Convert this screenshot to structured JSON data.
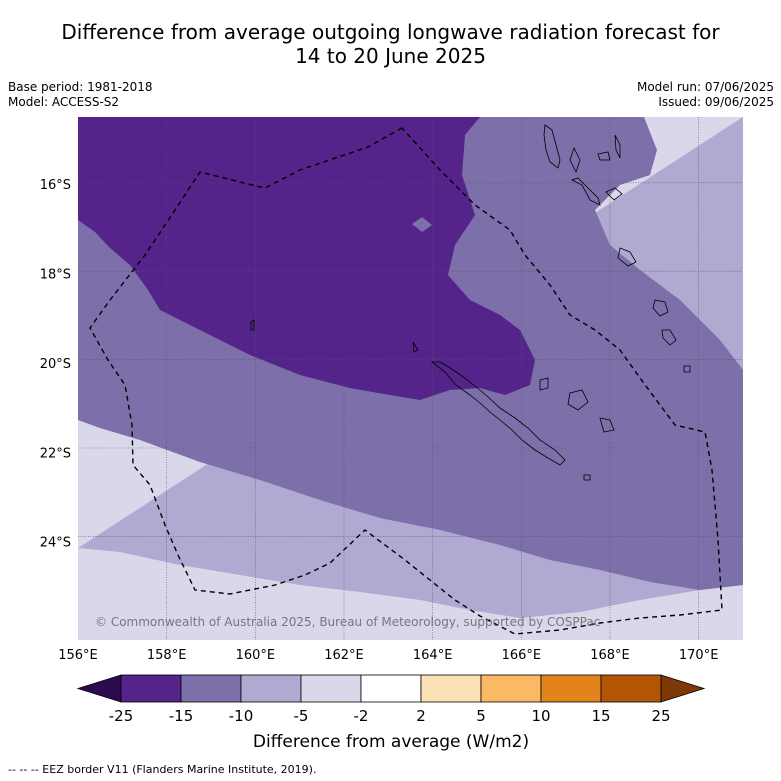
{
  "title_line1": "Difference from average outgoing longwave radiation forecast for",
  "title_line2": "14 to 20 June 2025",
  "base_period": "Base period: 1981-2018",
  "model": "Model: ACCESS-S2",
  "model_run": "Model run: 07/06/2025",
  "issued": "Issued: 09/06/2025",
  "copyright": "© Commonwealth of Australia 2025, Bureau of Meteorology, supported by COSPPac",
  "lon_labels": [
    {
      "value": 156,
      "label": "156°E"
    },
    {
      "value": 158,
      "label": "158°E"
    },
    {
      "value": 160,
      "label": "160°E"
    },
    {
      "value": 162,
      "label": "162°E"
    },
    {
      "value": 164,
      "label": "164°E"
    },
    {
      "value": 166,
      "label": "166°E"
    },
    {
      "value": 168,
      "label": "168°E"
    },
    {
      "value": 170,
      "label": "170°E"
    }
  ],
  "lat_labels": [
    {
      "value": -16,
      "label": "16°S"
    },
    {
      "value": -18,
      "label": "18°S"
    },
    {
      "value": -20,
      "label": "20°S"
    },
    {
      "value": -22,
      "label": "22°S"
    },
    {
      "value": -24,
      "label": "24°S"
    }
  ],
  "map_extent": {
    "lon_min": 156,
    "lon_max": 171,
    "lat_min": -26.2,
    "lat_max": -14.5
  },
  "colorbar": {
    "label": "Difference from average (W/m2)",
    "ticks": [
      "-25",
      "-15",
      "-10",
      "-5",
      "-2",
      "2",
      "5",
      "10",
      "15",
      "25"
    ],
    "colors": [
      "#54248a",
      "#7d6fa9",
      "#b0a9d1",
      "#d8d8ea",
      "#ffffff",
      "#fde1b6",
      "#fbb966",
      "#e2841b",
      "#b25606"
    ],
    "extend_low_color": "#2d0a50",
    "extend_high_color": "#7e3707"
  },
  "footer": "--  --  -- EEZ border V11 (Flanders Marine Institute, 2019)."
}
